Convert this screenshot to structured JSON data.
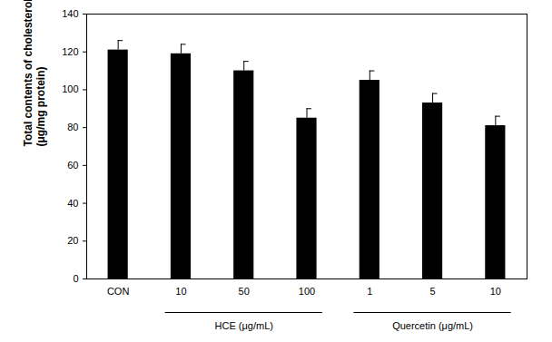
{
  "chart_data": {
    "type": "bar",
    "ylabel": "Total contents of cholesterol\n(μg/mg protein)",
    "categories": [
      "CON",
      "10",
      "50",
      "100",
      "1",
      "5",
      "10"
    ],
    "groups": [
      null,
      "HCE (μg/mL)",
      "HCE (μg/mL)",
      "HCE (μg/mL)",
      "Quercetin (μg/mL)",
      "Quercetin (μg/mL)",
      "Quercetin (μg/mL)"
    ],
    "values": [
      121,
      119,
      110,
      85,
      105,
      93,
      81
    ],
    "errors": [
      5,
      5,
      5,
      5,
      5,
      5,
      5
    ],
    "color": "#000000",
    "ylim": [
      0,
      140
    ],
    "yticks": [
      0,
      20,
      40,
      60,
      80,
      100,
      120,
      140
    ],
    "grid": false
  }
}
